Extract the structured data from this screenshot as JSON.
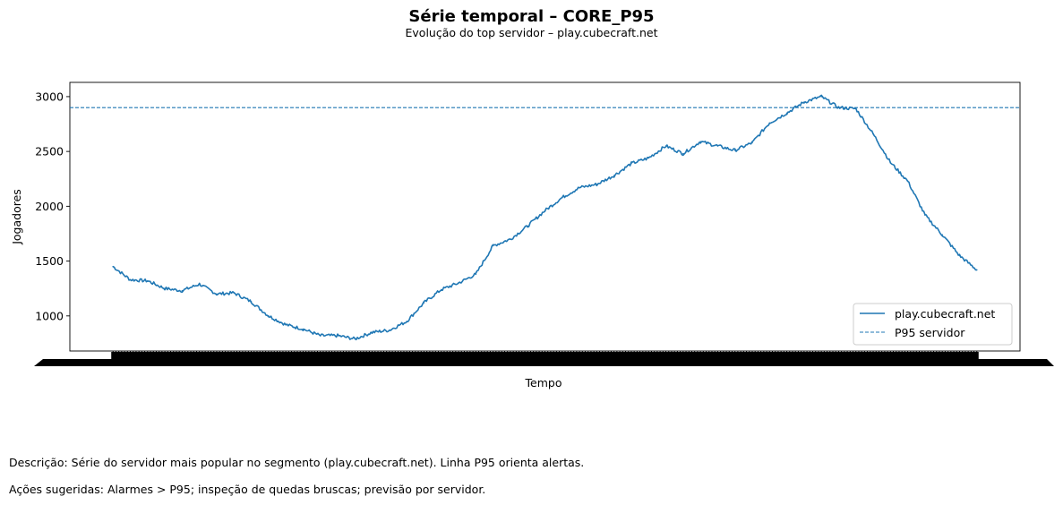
{
  "title": "Série temporal – CORE_P95",
  "subtitle": "Evolução do top servidor – play.cubecraft.net",
  "description": "Descrição: Série do servidor mais popular no segmento (play.cubecraft.net). Linha P95 orienta alertas.",
  "actions": "Ações sugeridas: Alarmes > P95; inspeção de quedas bruscas; previsão por servidor.",
  "colors": {
    "series": "#1f77b4",
    "axes": "#000000"
  },
  "chart_data": {
    "type": "line",
    "xlabel": "Tempo",
    "ylabel": "Jogadores",
    "yticks": [
      1000,
      1500,
      2000,
      2500,
      3000
    ],
    "ylim": [
      680,
      3130
    ],
    "xlim": [
      -0.05,
      1.05
    ],
    "x_tick_labels": "overlapping, illegible",
    "grid": false,
    "legend_position": "lower right",
    "legend": [
      "play.cubecraft.net",
      "P95 servidor"
    ],
    "series": [
      {
        "name": "play.cubecraft.net",
        "style": "solid",
        "x": [
          0.0,
          0.02,
          0.04,
          0.06,
          0.08,
          0.1,
          0.12,
          0.14,
          0.16,
          0.18,
          0.2,
          0.22,
          0.24,
          0.26,
          0.28,
          0.3,
          0.32,
          0.34,
          0.36,
          0.38,
          0.4,
          0.42,
          0.44,
          0.46,
          0.48,
          0.5,
          0.52,
          0.54,
          0.56,
          0.58,
          0.6,
          0.62,
          0.64,
          0.66,
          0.68,
          0.7,
          0.72,
          0.74,
          0.76,
          0.78,
          0.8,
          0.82,
          0.84,
          0.86,
          0.88,
          0.9,
          0.92,
          0.94,
          0.96,
          0.98,
          1.0
        ],
        "values": [
          1450,
          1330,
          1320,
          1250,
          1230,
          1290,
          1200,
          1210,
          1130,
          1000,
          920,
          880,
          820,
          820,
          790,
          850,
          870,
          950,
          1120,
          1240,
          1300,
          1380,
          1640,
          1700,
          1820,
          1960,
          2080,
          2170,
          2200,
          2280,
          2390,
          2440,
          2550,
          2480,
          2590,
          2550,
          2510,
          2580,
          2760,
          2850,
          2950,
          3000,
          2900,
          2890,
          2660,
          2400,
          2230,
          1920,
          1740,
          1550,
          1420
        ]
      },
      {
        "name": "P95 servidor",
        "style": "dashed",
        "constant": 2900
      }
    ]
  }
}
